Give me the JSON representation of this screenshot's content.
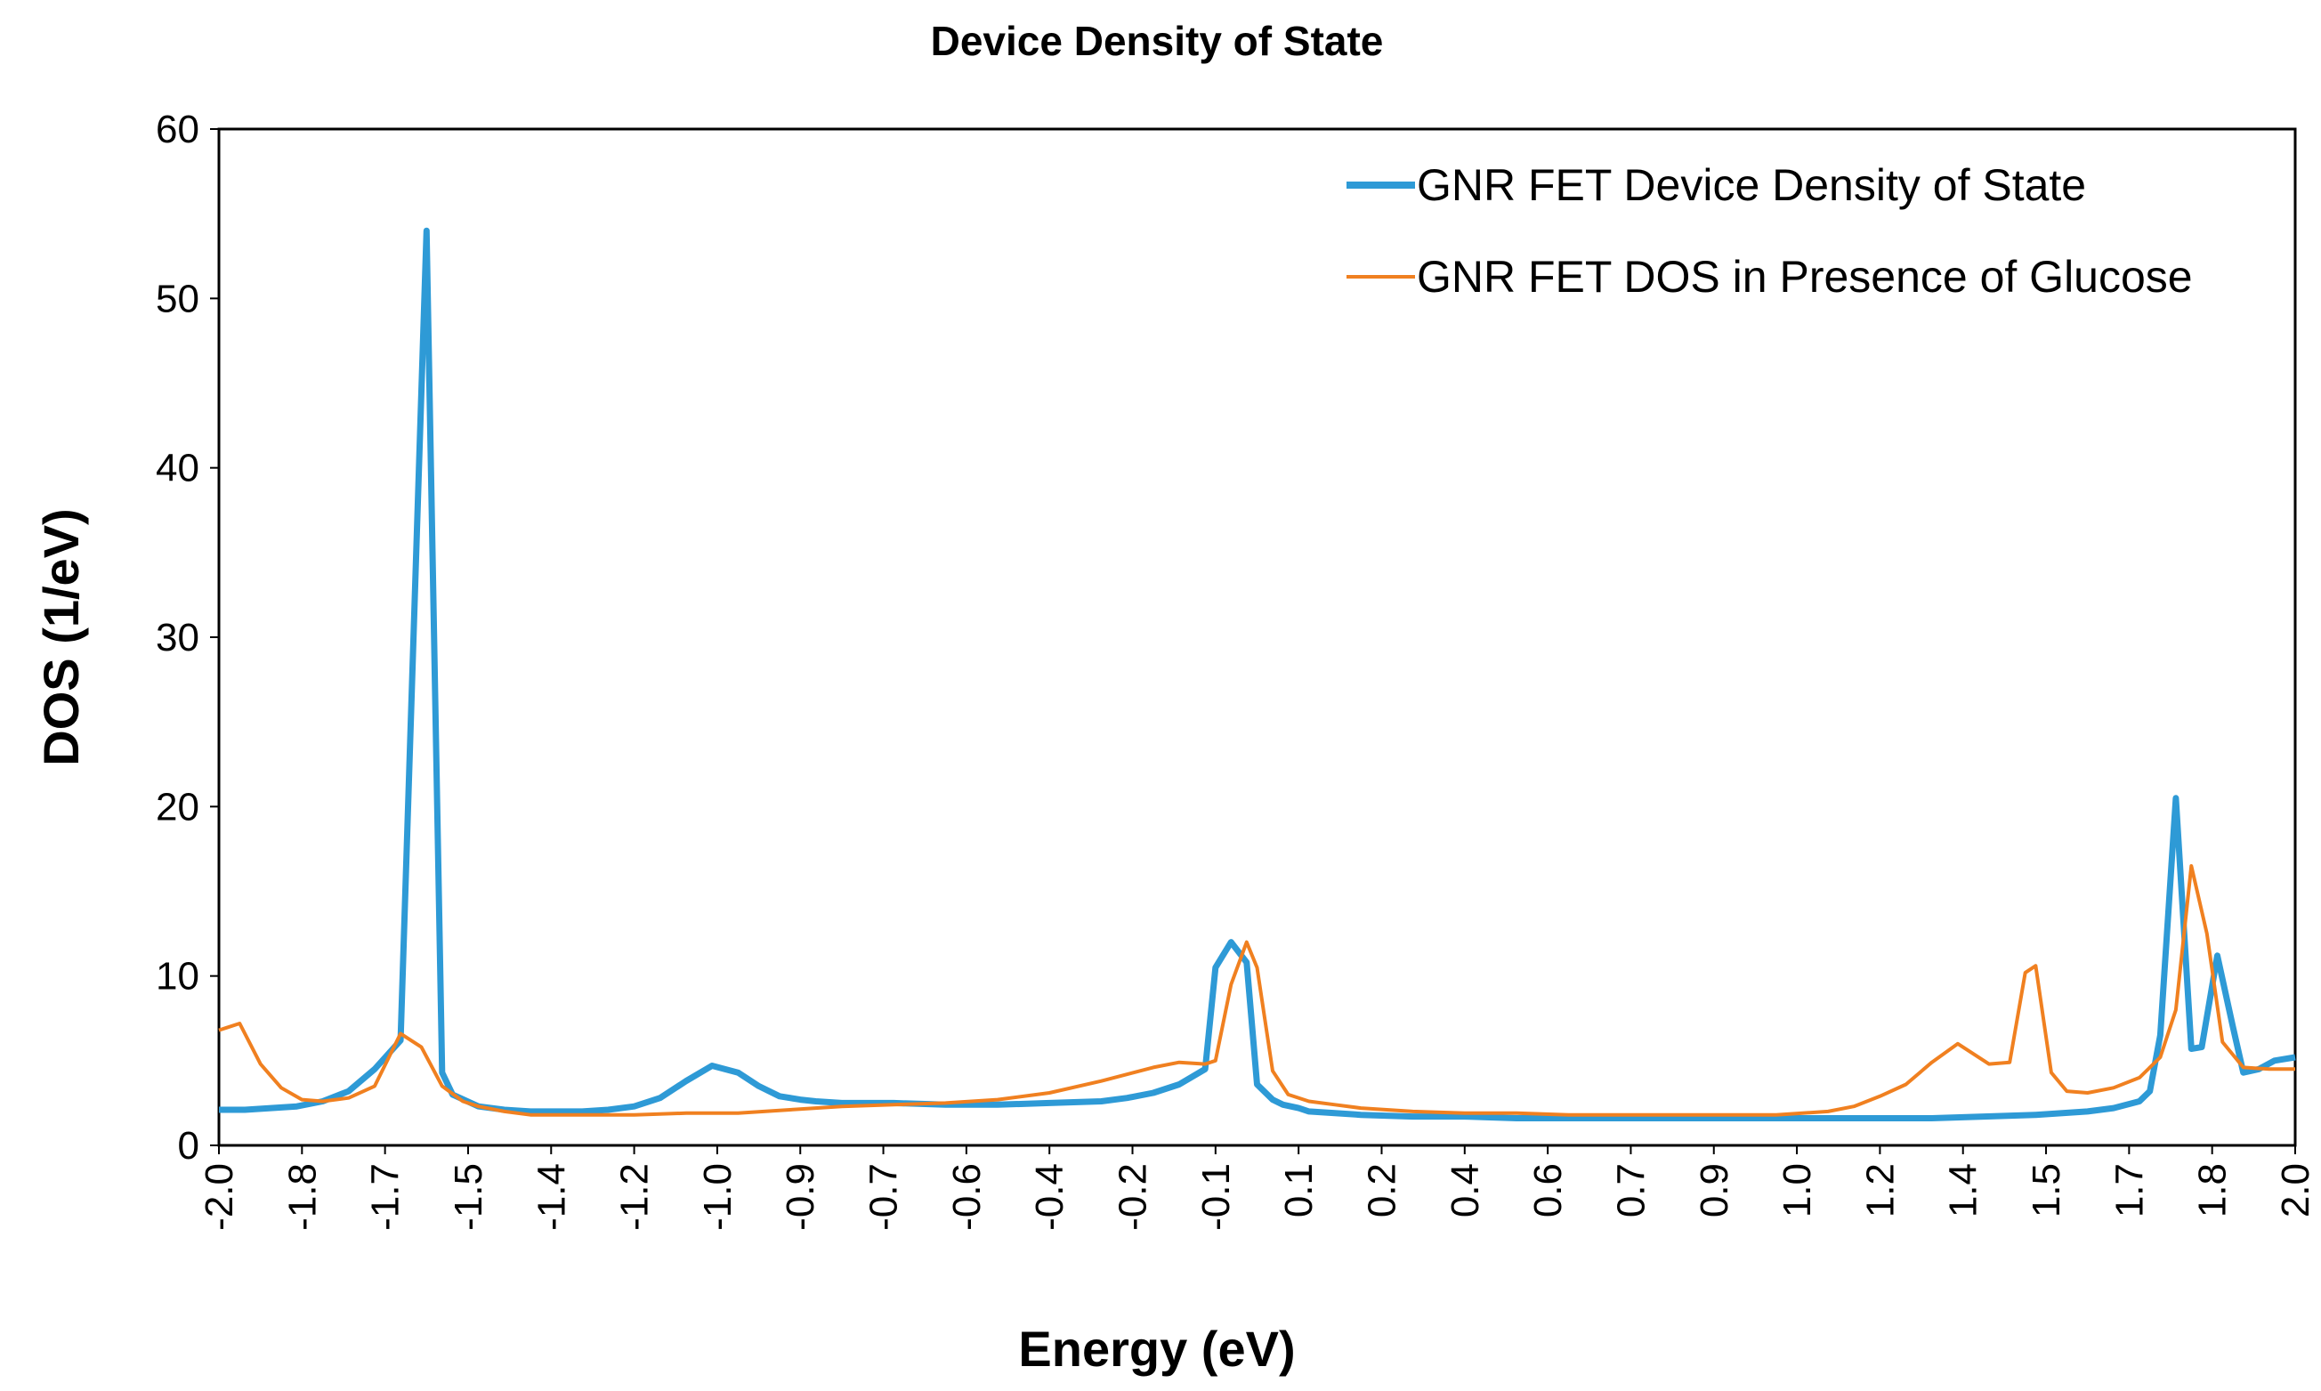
{
  "chart_data": {
    "type": "line",
    "title": "Device Density of State",
    "xlabel": "Energy (eV)",
    "ylabel": "DOS (1/eV)",
    "xlim": [
      -2.0,
      2.0
    ],
    "ylim": [
      0,
      60
    ],
    "y_ticks": [
      0,
      10,
      20,
      30,
      40,
      50,
      60
    ],
    "x_tick_labels": [
      "-2.0",
      "-1.8",
      "-1.7",
      "-1.5",
      "-1.4",
      "-1.2",
      "-1.0",
      "-0.9",
      "-0.7",
      "-0.6",
      "-0.4",
      "-0.2",
      "-0.1",
      "0.1",
      "0.2",
      "0.4",
      "0.6",
      "0.7",
      "0.9",
      "1.0",
      "1.2",
      "1.4",
      "1.5",
      "1.7",
      "1.8",
      "2.0"
    ],
    "grid": false,
    "legend_position": "top-right",
    "series": [
      {
        "name": "GNR FET Device Density of State",
        "color": "#2E9AD6",
        "x": [
          -2.0,
          -1.95,
          -1.9,
          -1.85,
          -1.8,
          -1.75,
          -1.7,
          -1.65,
          -1.6,
          -1.57,
          -1.55,
          -1.5,
          -1.45,
          -1.4,
          -1.35,
          -1.3,
          -1.25,
          -1.2,
          -1.15,
          -1.1,
          -1.05,
          -1.0,
          -0.96,
          -0.92,
          -0.88,
          -0.85,
          -0.8,
          -0.75,
          -0.7,
          -0.6,
          -0.5,
          -0.4,
          -0.3,
          -0.25,
          -0.2,
          -0.15,
          -0.1,
          -0.08,
          -0.05,
          -0.02,
          0.0,
          0.03,
          0.05,
          0.08,
          0.1,
          0.15,
          0.2,
          0.3,
          0.4,
          0.5,
          0.6,
          0.8,
          1.0,
          1.1,
          1.2,
          1.3,
          1.4,
          1.5,
          1.6,
          1.65,
          1.7,
          1.72,
          1.74,
          1.77,
          1.8,
          1.82,
          1.85,
          1.88,
          1.9,
          1.93,
          1.96,
          2.0
        ],
        "values": [
          2.1,
          2.1,
          2.2,
          2.3,
          2.6,
          3.2,
          4.5,
          6.2,
          54.0,
          4.3,
          3.0,
          2.3,
          2.1,
          2.0,
          2.0,
          2.0,
          2.1,
          2.3,
          2.8,
          3.8,
          4.7,
          4.3,
          3.5,
          2.9,
          2.7,
          2.6,
          2.5,
          2.5,
          2.5,
          2.4,
          2.4,
          2.5,
          2.6,
          2.8,
          3.1,
          3.6,
          4.5,
          10.5,
          12.0,
          10.8,
          3.6,
          2.7,
          2.4,
          2.2,
          2.0,
          1.9,
          1.8,
          1.7,
          1.7,
          1.6,
          1.6,
          1.6,
          1.6,
          1.6,
          1.6,
          1.6,
          1.7,
          1.8,
          2.0,
          2.2,
          2.6,
          3.2,
          6.5,
          20.5,
          5.7,
          5.8,
          11.2,
          7.0,
          4.3,
          4.5,
          5.0,
          5.2
        ]
      },
      {
        "name": "GNR FET DOS in Presence of Glucose",
        "color": "#F08020",
        "x": [
          -2.0,
          -1.96,
          -1.92,
          -1.88,
          -1.84,
          -1.8,
          -1.75,
          -1.7,
          -1.65,
          -1.61,
          -1.57,
          -1.53,
          -1.5,
          -1.45,
          -1.4,
          -1.3,
          -1.2,
          -1.1,
          -1.0,
          -0.9,
          -0.8,
          -0.7,
          -0.6,
          -0.5,
          -0.4,
          -0.3,
          -0.2,
          -0.15,
          -0.1,
          -0.08,
          -0.05,
          -0.02,
          0.0,
          0.03,
          0.06,
          0.1,
          0.15,
          0.2,
          0.3,
          0.4,
          0.5,
          0.6,
          0.8,
          1.0,
          1.1,
          1.15,
          1.2,
          1.25,
          1.3,
          1.35,
          1.38,
          1.41,
          1.45,
          1.48,
          1.5,
          1.53,
          1.56,
          1.6,
          1.65,
          1.7,
          1.74,
          1.77,
          1.8,
          1.83,
          1.86,
          1.9,
          1.95,
          2.0
        ],
        "values": [
          6.8,
          7.2,
          4.8,
          3.4,
          2.7,
          2.6,
          2.8,
          3.5,
          6.6,
          5.8,
          3.5,
          2.6,
          2.3,
          2.0,
          1.8,
          1.8,
          1.8,
          1.9,
          1.9,
          2.1,
          2.3,
          2.4,
          2.5,
          2.7,
          3.1,
          3.8,
          4.6,
          4.9,
          4.8,
          5.0,
          9.5,
          12.0,
          10.5,
          4.4,
          3.0,
          2.6,
          2.4,
          2.2,
          2.0,
          1.9,
          1.9,
          1.8,
          1.8,
          1.8,
          2.0,
          2.3,
          2.9,
          3.6,
          4.9,
          6.0,
          5.4,
          4.8,
          4.9,
          10.2,
          10.6,
          4.3,
          3.2,
          3.1,
          3.4,
          4.0,
          5.2,
          8.0,
          16.5,
          12.5,
          6.1,
          4.6,
          4.5,
          4.5
        ]
      }
    ]
  }
}
